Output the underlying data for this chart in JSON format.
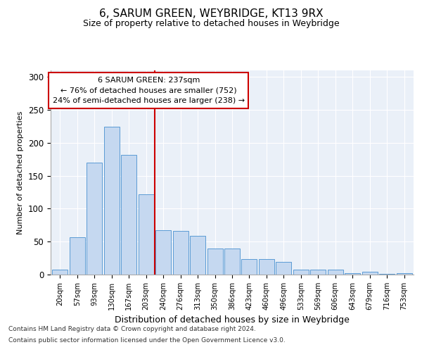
{
  "title": "6, SARUM GREEN, WEYBRIDGE, KT13 9RX",
  "subtitle": "Size of property relative to detached houses in Weybridge",
  "xlabel": "Distribution of detached houses by size in Weybridge",
  "ylabel": "Number of detached properties",
  "bar_labels": [
    "20sqm",
    "57sqm",
    "93sqm",
    "130sqm",
    "167sqm",
    "203sqm",
    "240sqm",
    "276sqm",
    "313sqm",
    "350sqm",
    "386sqm",
    "423sqm",
    "460sqm",
    "496sqm",
    "533sqm",
    "569sqm",
    "606sqm",
    "643sqm",
    "679sqm",
    "716sqm",
    "753sqm"
  ],
  "bar_values": [
    8,
    57,
    170,
    225,
    182,
    122,
    67,
    66,
    59,
    40,
    40,
    24,
    23,
    19,
    8,
    8,
    7,
    2,
    4,
    1,
    2
  ],
  "bar_color": "#c5d8f0",
  "bar_edge_color": "#5b9bd5",
  "vline_x": 5.5,
  "vline_color": "#cc0000",
  "annotation_text": "6 SARUM GREEN: 237sqm\n← 76% of detached houses are smaller (752)\n24% of semi-detached houses are larger (238) →",
  "annotation_box_color": "#ffffff",
  "annotation_box_edge": "#cc0000",
  "ylim": [
    0,
    310
  ],
  "yticks": [
    0,
    50,
    100,
    150,
    200,
    250,
    300
  ],
  "bg_color": "#eaf0f8",
  "footer_line1": "Contains HM Land Registry data © Crown copyright and database right 2024.",
  "footer_line2": "Contains public sector information licensed under the Open Government Licence v3.0."
}
